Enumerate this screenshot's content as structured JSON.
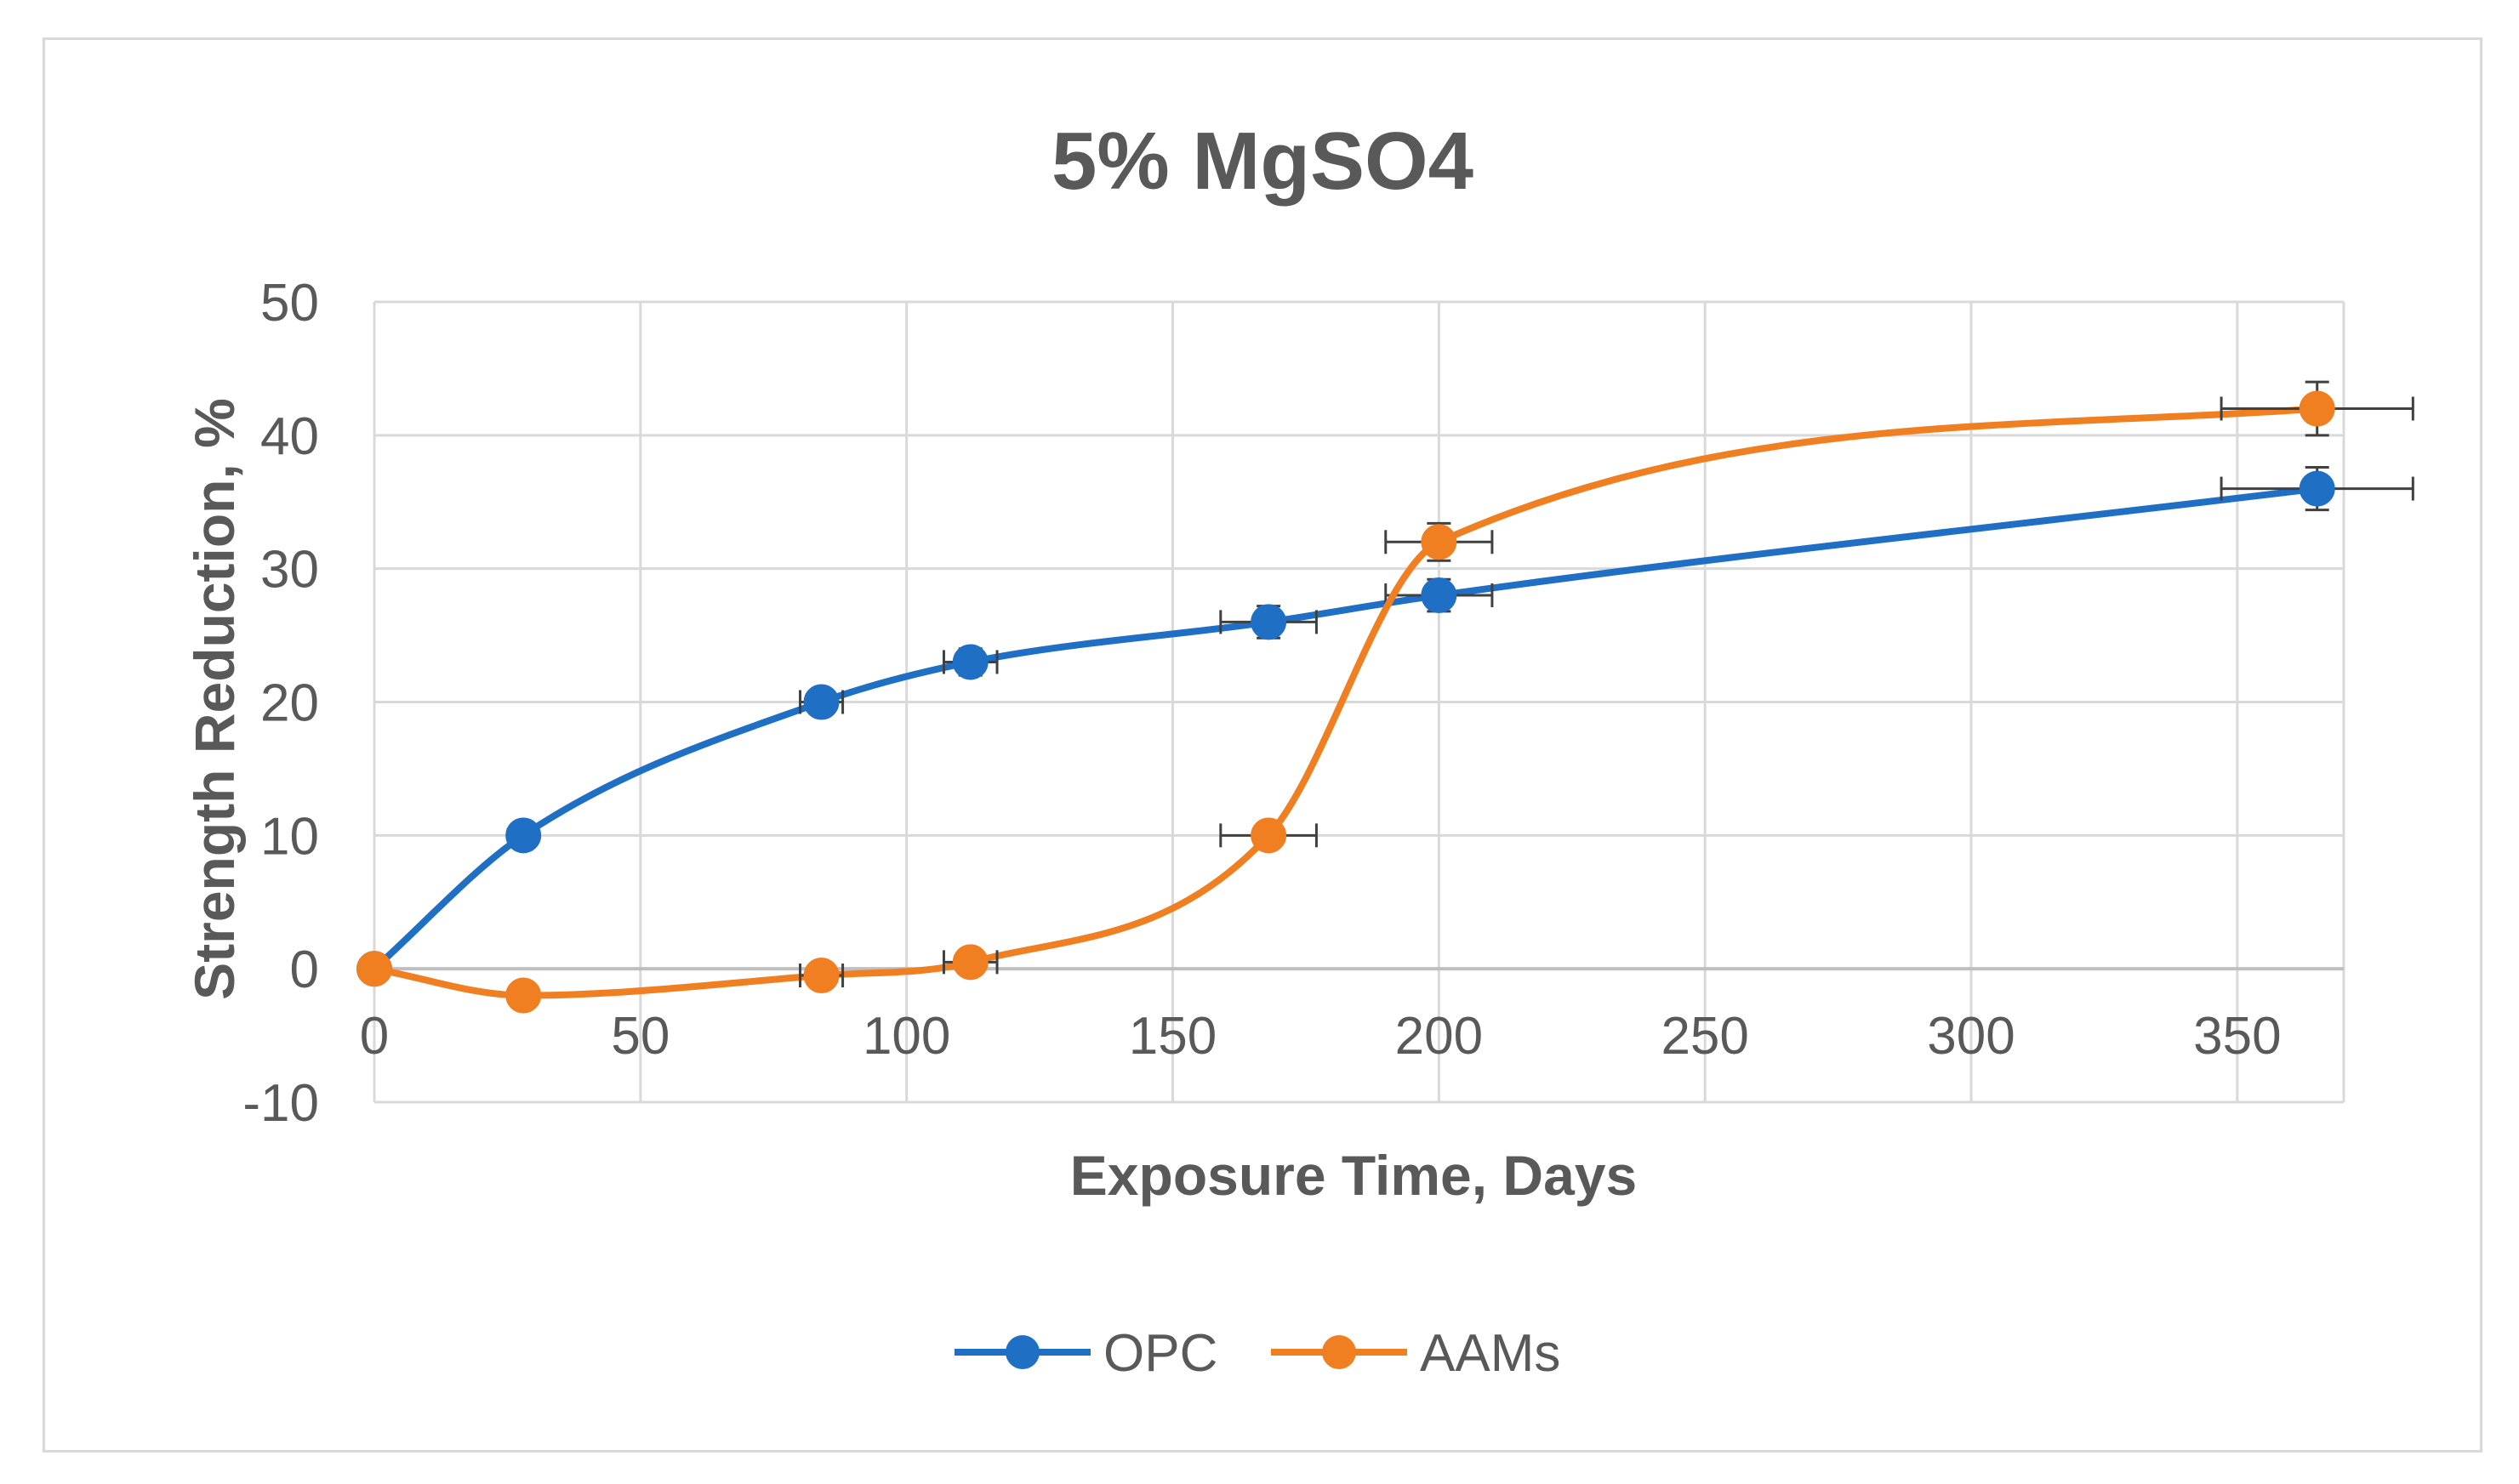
{
  "chart_data": {
    "type": "line",
    "title": "5% MgSO4",
    "xlabel": "Exposure Time, Days",
    "ylabel": "Strength Reduction, %",
    "xlim": [
      0,
      370
    ],
    "ylim": [
      -10,
      50
    ],
    "x_ticks": [
      0,
      50,
      100,
      150,
      200,
      250,
      300,
      350
    ],
    "y_ticks": [
      -10,
      0,
      10,
      20,
      30,
      40,
      50
    ],
    "x_tick_labels": [
      "0",
      "50",
      "100",
      "150",
      "200",
      "250",
      "300",
      "350"
    ],
    "y_tick_labels": [
      "-10",
      "0",
      "10",
      "20",
      "30",
      "40",
      "50"
    ],
    "grid": true,
    "smoothed": true,
    "legend_position": "bottom",
    "series": [
      {
        "name": "OPC",
        "color": "#1f6fc5",
        "points": [
          {
            "x": 0,
            "y": 0,
            "x_err": 0,
            "y_err": 0
          },
          {
            "x": 28,
            "y": 10,
            "x_err": 0,
            "y_err": 0
          },
          {
            "x": 84,
            "y": 20,
            "x_err": 4,
            "y_err": 0.8
          },
          {
            "x": 112,
            "y": 23,
            "x_err": 5,
            "y_err": 1.0
          },
          {
            "x": 168,
            "y": 26,
            "x_err": 9,
            "y_err": 1.2
          },
          {
            "x": 200,
            "y": 28,
            "x_err": 10,
            "y_err": 1.2
          },
          {
            "x": 365,
            "y": 36,
            "x_err": 18,
            "y_err": 1.6
          }
        ]
      },
      {
        "name": "AAMs",
        "color": "#f07f22",
        "points": [
          {
            "x": 0,
            "y": 0,
            "x_err": 0,
            "y_err": 0
          },
          {
            "x": 28,
            "y": -2,
            "x_err": 0,
            "y_err": 0
          },
          {
            "x": 84,
            "y": -0.5,
            "x_err": 4,
            "y_err": 0.6
          },
          {
            "x": 112,
            "y": 0.5,
            "x_err": 5,
            "y_err": 0.6
          },
          {
            "x": 168,
            "y": 10,
            "x_err": 9,
            "y_err": 0
          },
          {
            "x": 200,
            "y": 32,
            "x_err": 10,
            "y_err": 1.4
          },
          {
            "x": 365,
            "y": 42,
            "x_err": 18,
            "y_err": 2.0
          }
        ]
      }
    ]
  }
}
